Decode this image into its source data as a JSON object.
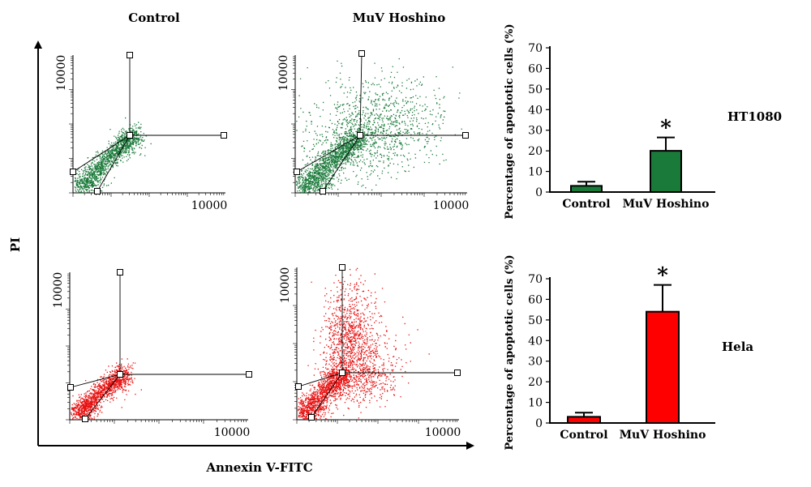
{
  "figure": {
    "col_labels": [
      "Control",
      "MuV Hoshino"
    ],
    "y_axis_label": "PI",
    "x_axis_label": "Annexin V-FITC",
    "row_labels": [
      "HT1080",
      "Hela"
    ]
  },
  "flow_plots": {
    "y_tick": "10000",
    "x_tick": "10000",
    "colors": {
      "HT1080": "#1a7a3a",
      "Hela": "#e81010"
    }
  },
  "chart_data": [
    {
      "type": "bar",
      "title": "HT1080",
      "categories": [
        "Control",
        "MuV Hoshino"
      ],
      "values": [
        3,
        20
      ],
      "errors": [
        2,
        6.5
      ],
      "significance": [
        "",
        "*"
      ],
      "ylabel": "Percentage of apoptotic cells (%)",
      "ylim": [
        0,
        70
      ],
      "yticks": [
        0,
        10,
        20,
        30,
        40,
        50,
        60,
        70
      ],
      "color": "#1a7a3a"
    },
    {
      "type": "bar",
      "title": "Hela",
      "categories": [
        "Control",
        "MuV Hoshino"
      ],
      "values": [
        3,
        54
      ],
      "errors": [
        2,
        13
      ],
      "significance": [
        "",
        "*"
      ],
      "ylabel": "Percentage of apoptotic cells (%)",
      "ylim": [
        0,
        70
      ],
      "yticks": [
        0,
        10,
        20,
        30,
        40,
        50,
        60,
        70
      ],
      "color": "#ff0000"
    }
  ]
}
